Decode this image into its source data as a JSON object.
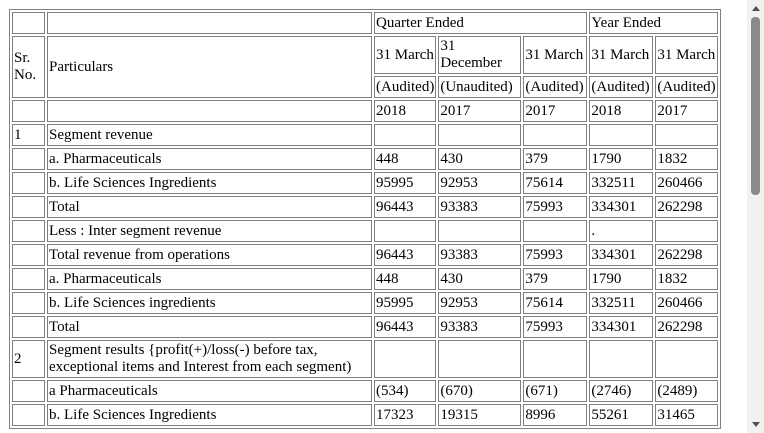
{
  "header": {
    "quarter_ended": "Quarter Ended",
    "year_ended": "Year Ended",
    "sr_no": "Sr. No.",
    "particulars": "Particulars",
    "dates": [
      "31 March",
      "31 December",
      "31 March",
      "31 March",
      "31 March"
    ],
    "status": [
      "(Audited)",
      "(Unaudited)",
      "(Audited)",
      "(Audited)",
      "(Audited)"
    ],
    "years": [
      "2018",
      "2017",
      "2017",
      "2018",
      "2017"
    ]
  },
  "rows": [
    {
      "sr": "1",
      "label": "Segment revenue",
      "values": [
        "",
        "",
        "",
        "",
        ""
      ]
    },
    {
      "sr": "",
      "label": "a. Pharmaceuticals",
      "values": [
        "448",
        "430",
        "379",
        "1790",
        "1832"
      ]
    },
    {
      "sr": "",
      "label": "b. Life Sciences Ingredients",
      "values": [
        "95995",
        "92953",
        "75614",
        "332511",
        "260466"
      ]
    },
    {
      "sr": "",
      "label": "Total",
      "values": [
        "96443",
        "93383",
        "75993",
        "334301",
        "262298"
      ]
    },
    {
      "sr": "",
      "label": "Less : Inter segment revenue",
      "values": [
        "",
        "",
        "",
        ".",
        ""
      ]
    },
    {
      "sr": "",
      "label": "Total revenue from operations",
      "values": [
        "96443",
        "93383",
        "75993",
        "334301",
        "262298"
      ]
    },
    {
      "sr": "",
      "label": "a. Pharmaceuticals",
      "values": [
        "448",
        "430",
        "379",
        "1790",
        "1832"
      ]
    },
    {
      "sr": "",
      "label": "b. Life Sciences ingredients",
      "values": [
        "95995",
        "92953",
        "75614",
        "332511",
        "260466"
      ]
    },
    {
      "sr": "",
      "label": "Total",
      "values": [
        "96443",
        "93383",
        "75993",
        "334301",
        "262298"
      ]
    },
    {
      "sr": "2",
      "label": "Segment results {profit(+)/loss(-) before tax, exceptional items and Interest from each segment)",
      "values": [
        "",
        "",
        "",
        "",
        ""
      ]
    },
    {
      "sr": "",
      "label": "a Pharmaceuticals",
      "values": [
        "(534)",
        "(670)",
        "(671)",
        "(2746)",
        "(2489)"
      ]
    },
    {
      "sr": "",
      "label": "b. Life Sciences Ingredients",
      "values": [
        "17323",
        "19315",
        "8996",
        "55261",
        "31465"
      ]
    }
  ]
}
